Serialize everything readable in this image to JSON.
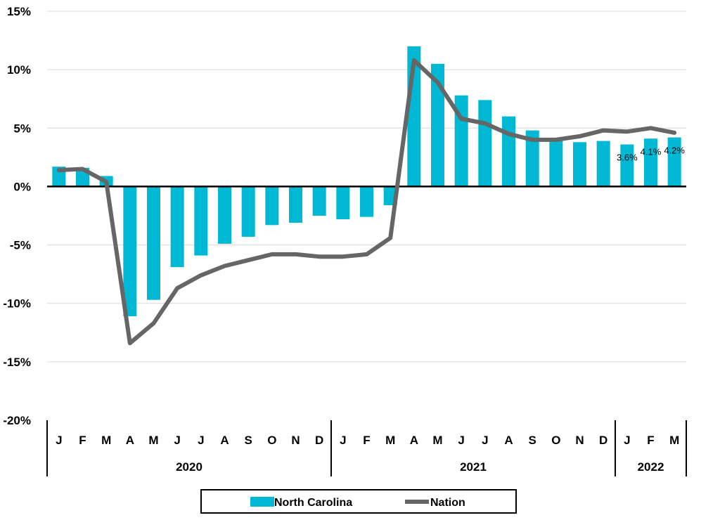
{
  "chart_data": {
    "type": "bar",
    "yticks": [
      "15%",
      "10%",
      "5%",
      "0%",
      "-5%",
      "-10%",
      "-15%",
      "-20%"
    ],
    "ylim": [
      -20,
      15
    ],
    "ytick_values": [
      15,
      10,
      5,
      0,
      -5,
      -10,
      -15,
      -20
    ],
    "grid": true,
    "categories": [
      "J",
      "F",
      "M",
      "A",
      "M",
      "J",
      "J",
      "A",
      "S",
      "O",
      "N",
      "D",
      "J",
      "F",
      "M",
      "A",
      "M",
      "J",
      "J",
      "A",
      "S",
      "O",
      "N",
      "D",
      "J",
      "F",
      "M"
    ],
    "years": [
      {
        "label": "2020",
        "start": 0,
        "count": 12
      },
      {
        "label": "2021",
        "start": 12,
        "count": 12
      },
      {
        "label": "2022",
        "start": 24,
        "count": 3
      }
    ],
    "series": [
      {
        "name": "North Carolina",
        "kind": "bar",
        "color": "#00B8D4",
        "values": [
          1.7,
          1.6,
          0.9,
          -11.1,
          -9.7,
          -6.9,
          -5.9,
          -4.9,
          -4.3,
          -3.3,
          -3.1,
          -2.5,
          -2.8,
          -2.6,
          -1.6,
          12.0,
          10.5,
          7.8,
          7.4,
          6.0,
          4.8,
          4.0,
          3.8,
          3.9,
          3.6,
          4.1,
          4.2
        ]
      },
      {
        "name": "Nation",
        "kind": "line",
        "color": "#666666",
        "values": [
          1.4,
          1.5,
          0.4,
          -13.4,
          -11.7,
          -8.7,
          -7.6,
          -6.8,
          -6.3,
          -5.8,
          -5.8,
          -6.0,
          -6.0,
          -5.8,
          -4.4,
          10.8,
          8.9,
          5.8,
          5.4,
          4.5,
          4.0,
          4.0,
          4.3,
          4.8,
          4.7,
          5.0,
          4.6
        ]
      }
    ],
    "data_labels": [
      {
        "index": 24,
        "text": "3.6%"
      },
      {
        "index": 25,
        "text": "4.1%"
      },
      {
        "index": 26,
        "text": "4.2%"
      }
    ],
    "legend": {
      "placement": "bottom",
      "items": [
        {
          "label": "North Carolina",
          "color": "#00B8D4",
          "kind": "bar"
        },
        {
          "label": "Nation",
          "color": "#666666",
          "kind": "line"
        }
      ]
    }
  }
}
